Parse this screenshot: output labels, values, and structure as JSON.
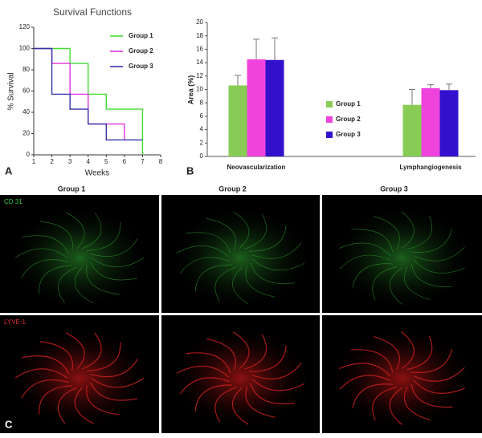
{
  "chart_data": [
    {
      "type": "line",
      "step": true,
      "title": "Survival Functions",
      "xlabel": "Weeks",
      "ylabel": "% Survival",
      "xlim": [
        1,
        8
      ],
      "xticks": [
        1,
        2,
        3,
        4,
        5,
        6,
        7,
        8
      ],
      "ylim": [
        0,
        120
      ],
      "yticks": [
        0,
        20,
        40,
        60,
        80,
        100,
        120
      ],
      "legend": "upper right",
      "series": [
        {
          "name": "Group 1",
          "color": "#44dd33",
          "x": [
            1,
            3,
            4,
            5,
            7
          ],
          "values": [
            100,
            86,
            57,
            43,
            0
          ]
        },
        {
          "name": "Group 2",
          "color": "#dd33dd",
          "x": [
            1,
            2,
            3,
            4,
            6
          ],
          "values": [
            100,
            86,
            57,
            29,
            14
          ]
        },
        {
          "name": "Group 3",
          "color": "#3333aa",
          "x": [
            1,
            2,
            3,
            4,
            5,
            7
          ],
          "values": [
            100,
            57,
            43,
            29,
            14,
            14
          ]
        }
      ]
    },
    {
      "type": "bar",
      "ylabel": "Area (%)",
      "categories": [
        "Neovascularization",
        "Lymphangiogenesis"
      ],
      "ylim": [
        0,
        20
      ],
      "yticks": [
        0,
        2,
        4,
        6,
        8,
        10,
        12,
        14,
        16,
        18,
        20
      ],
      "legend": "center",
      "series": [
        {
          "name": "Group 1",
          "color": "#88cc55",
          "values": [
            10.6,
            7.7
          ],
          "errors": [
            1.5,
            2.3
          ]
        },
        {
          "name": "Group 2",
          "color": "#ee44dd",
          "values": [
            14.5,
            10.2
          ],
          "errors": [
            3.0,
            0.5
          ]
        },
        {
          "name": "Group 3",
          "color": "#3311cc",
          "values": [
            14.4,
            9.9
          ],
          "errors": [
            3.3,
            0.9
          ]
        }
      ]
    }
  ],
  "panel_labels": [
    "A",
    "B",
    "C"
  ],
  "images": {
    "columns": [
      "Group 1",
      "Group 2",
      "Group 3"
    ],
    "rows": [
      "CD 31",
      "LYVE-1"
    ]
  }
}
